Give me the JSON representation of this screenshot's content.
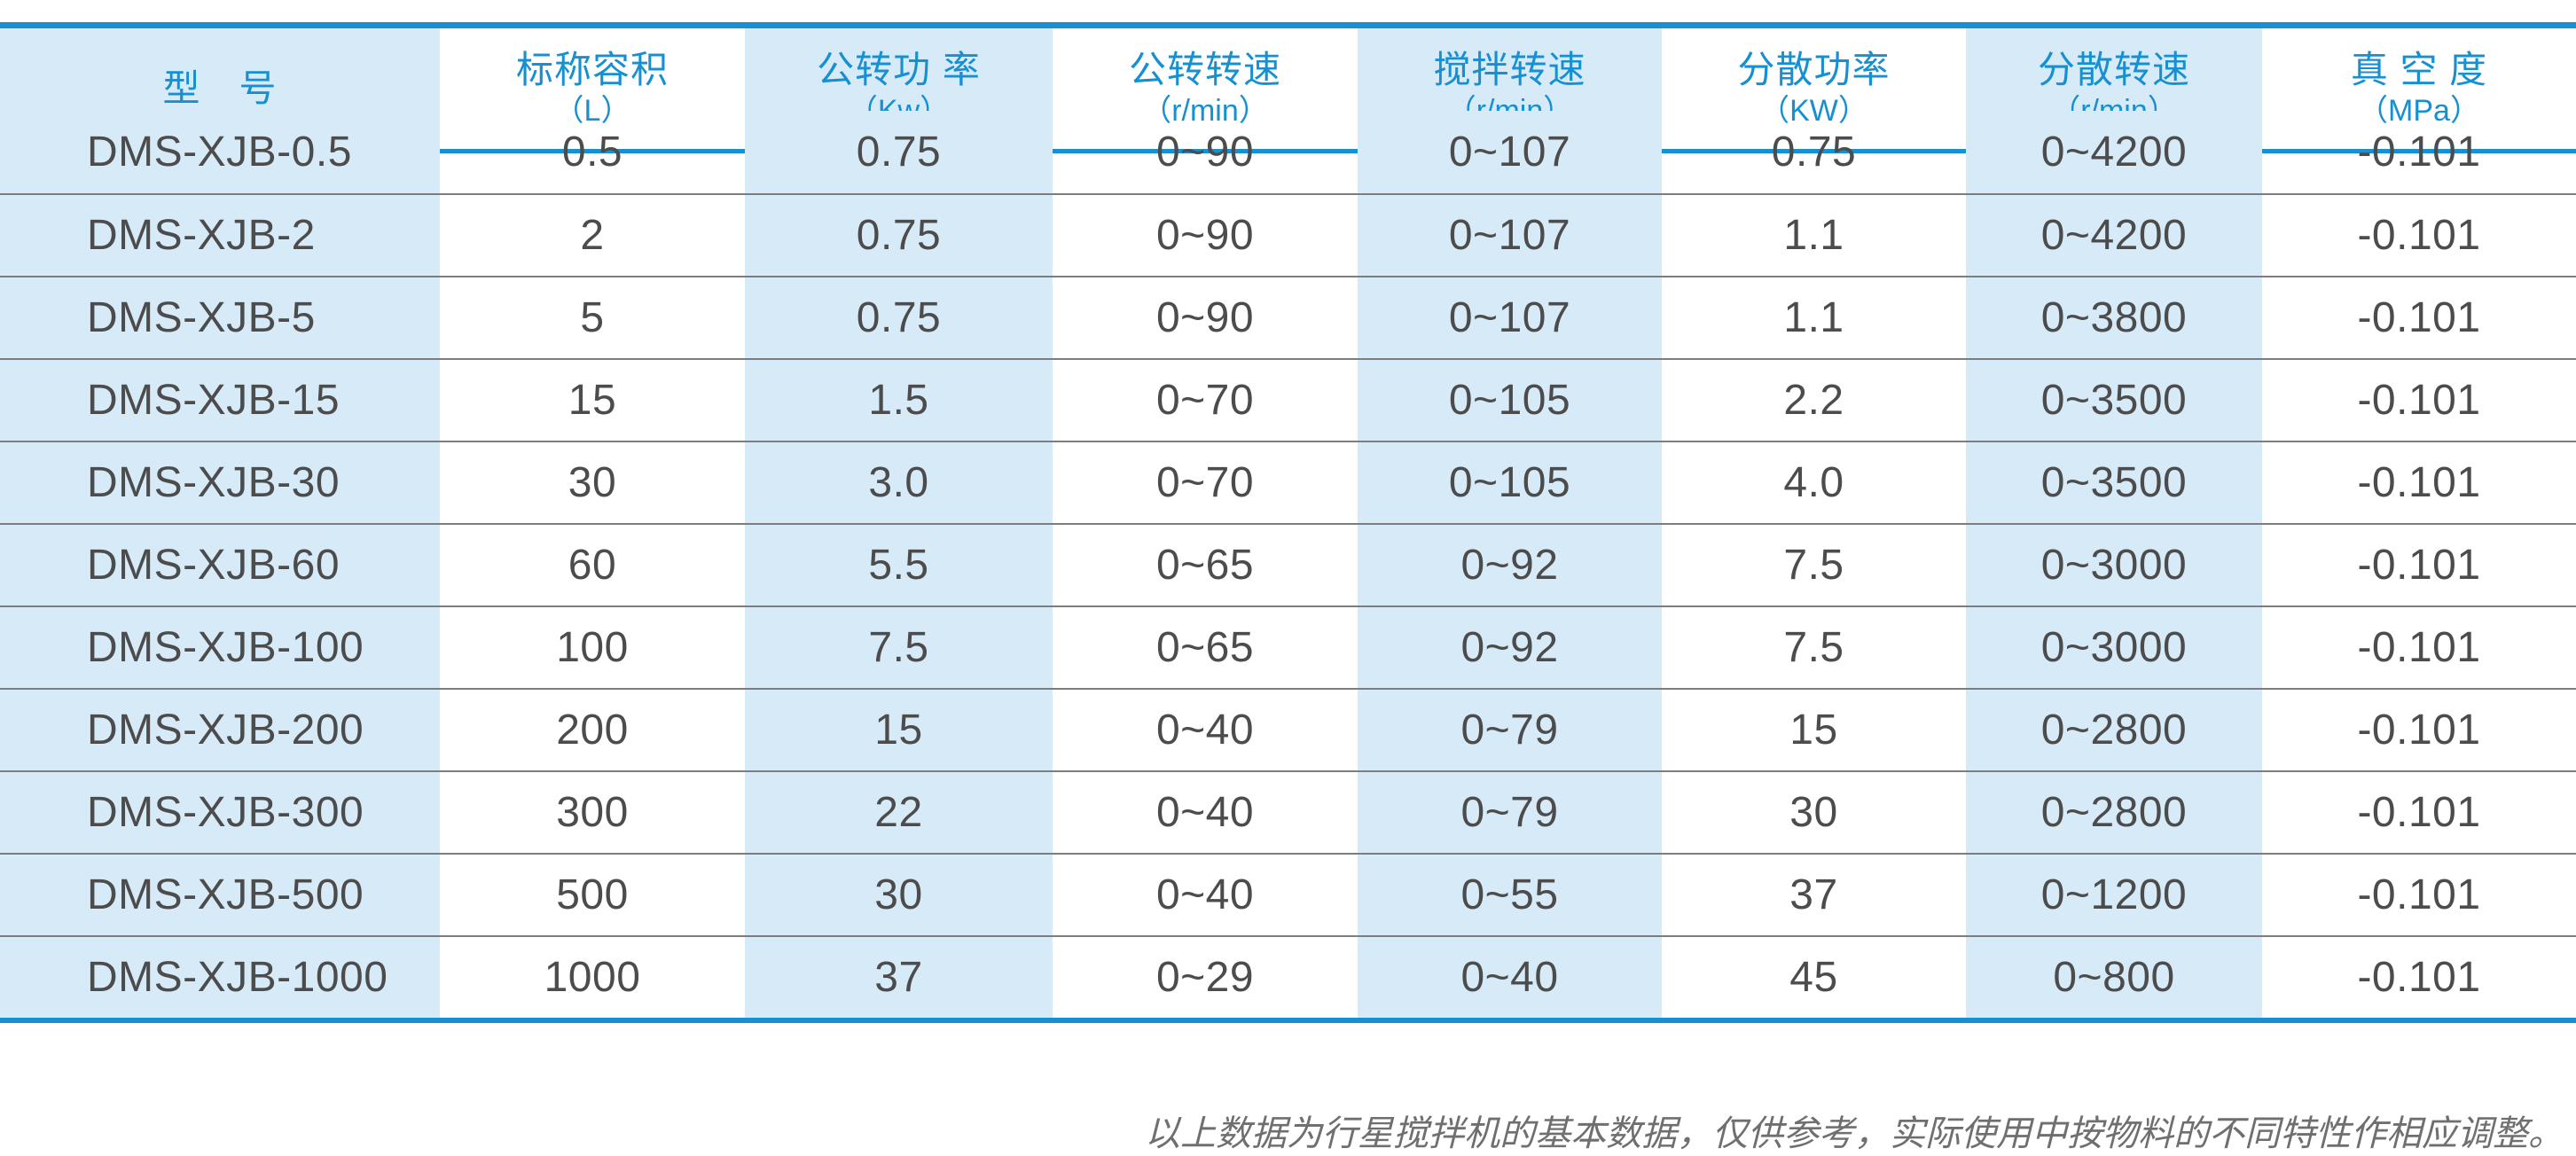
{
  "table": {
    "columns": [
      {
        "title": "型　号",
        "unit": "",
        "shaded": true
      },
      {
        "title": "标称容积",
        "unit": "（L）",
        "shaded": false
      },
      {
        "title": "公转功 率",
        "unit": "（Kw）",
        "shaded": true
      },
      {
        "title": "公转转速",
        "unit": "（r/min）",
        "shaded": false
      },
      {
        "title": "搅拌转速",
        "unit": "（r/min）",
        "shaded": true
      },
      {
        "title": "分散功率",
        "unit": "（KW）",
        "shaded": false
      },
      {
        "title": "分散转速",
        "unit": "（r/min）",
        "shaded": true
      },
      {
        "title": "真 空 度",
        "unit": "（MPa）",
        "shaded": false
      }
    ],
    "rows": [
      {
        "model": "DMS-XJB-0.5",
        "values": [
          "0.5",
          "0.75",
          "0~90",
          "0~107",
          "0.75",
          "0~4200",
          "-0.101"
        ]
      },
      {
        "model": "DMS-XJB-2",
        "values": [
          "2",
          "0.75",
          "0~90",
          "0~107",
          "1.1",
          "0~4200",
          "-0.101"
        ]
      },
      {
        "model": "DMS-XJB-5",
        "values": [
          "5",
          "0.75",
          "0~90",
          "0~107",
          "1.1",
          "0~3800",
          "-0.101"
        ]
      },
      {
        "model": "DMS-XJB-15",
        "values": [
          "15",
          "1.5",
          "0~70",
          "0~105",
          "2.2",
          "0~3500",
          "-0.101"
        ]
      },
      {
        "model": "DMS-XJB-30",
        "values": [
          "30",
          "3.0",
          "0~70",
          "0~105",
          "4.0",
          "0~3500",
          "-0.101"
        ]
      },
      {
        "model": "DMS-XJB-60",
        "values": [
          "60",
          "5.5",
          "0~65",
          "0~92",
          "7.5",
          "0~3000",
          "-0.101"
        ]
      },
      {
        "model": "DMS-XJB-100",
        "values": [
          "100",
          "7.5",
          "0~65",
          "0~92",
          "7.5",
          "0~3000",
          "-0.101"
        ]
      },
      {
        "model": "DMS-XJB-200",
        "values": [
          "200",
          "15",
          "0~40",
          "0~79",
          "15",
          "0~2800",
          "-0.101"
        ]
      },
      {
        "model": "DMS-XJB-300",
        "values": [
          "300",
          "22",
          "0~40",
          "0~79",
          "30",
          "0~2800",
          "-0.101"
        ]
      },
      {
        "model": "DMS-XJB-500",
        "values": [
          "500",
          "30",
          "0~40",
          "0~55",
          "37",
          "0~1200",
          "-0.101"
        ]
      },
      {
        "model": "DMS-XJB-1000",
        "values": [
          "1000",
          "37",
          "0~29",
          "0~40",
          "45",
          "0~800",
          "-0.101"
        ]
      }
    ]
  },
  "footnote": "以上数据为行星搅拌机的基本数据，仅供参考，实际使用中按物料的不同特性作相应调整。",
  "colors": {
    "accent_blue": "#1790d2",
    "shaded_column_blue": "#d7eaf8",
    "row_separator_gray": "#7d7d7d",
    "body_text_gray": "#4c4c4c",
    "footnote_gray": "#6f6f6f"
  }
}
